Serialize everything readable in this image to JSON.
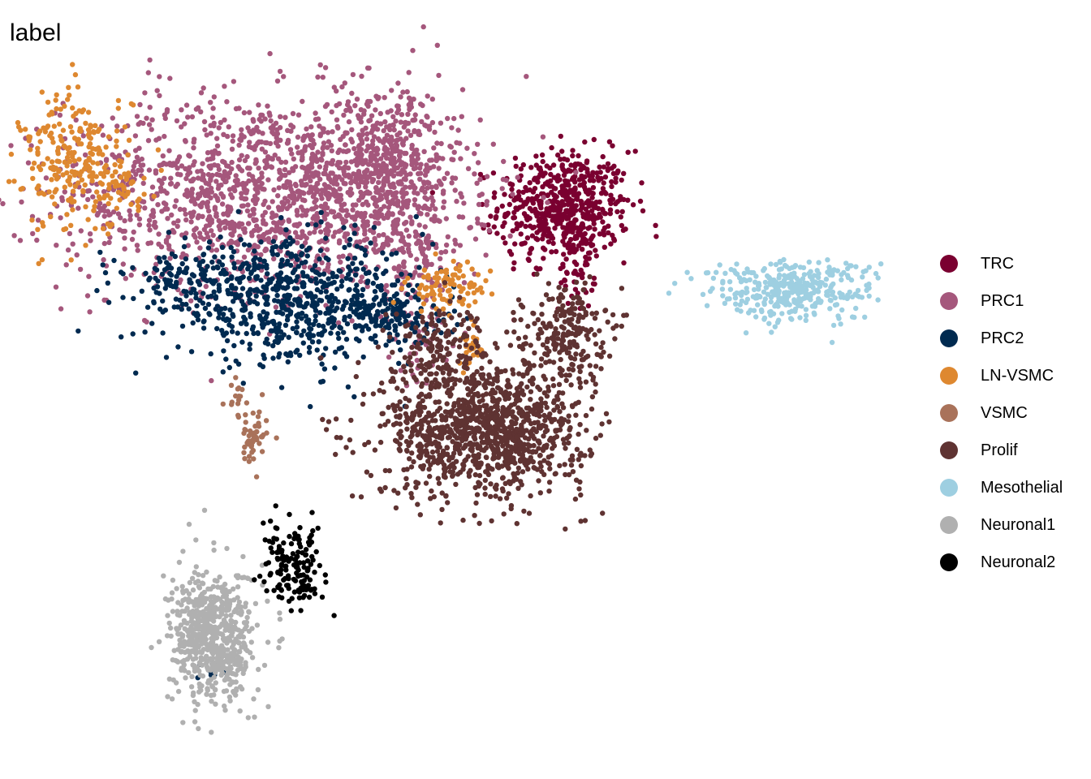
{
  "chart_data": {
    "type": "scatter",
    "title": "label",
    "xlabel": "",
    "ylabel": "",
    "grid": false,
    "legend_position": "right",
    "series": [
      {
        "name": "TRC",
        "color": "#7A0030",
        "clusters": [
          {
            "center": [
              8.2,
              7.6
            ],
            "spread": [
              1.1,
              0.9
            ],
            "n": 520
          },
          {
            "center": [
              8.6,
              5.7
            ],
            "spread": [
              0.3,
              0.8
            ],
            "n": 60
          },
          {
            "center": [
              7.1,
              6.7
            ],
            "spread": [
              0.9,
              0.6
            ],
            "n": 20
          }
        ]
      },
      {
        "name": "PRC1",
        "color": "#A5577C",
        "clusters": [
          {
            "center": [
              -2.0,
              8.0
            ],
            "spread": [
              3.3,
              1.6
            ],
            "n": 1400
          },
          {
            "center": [
              2.2,
              8.8
            ],
            "spread": [
              1.3,
              1.4
            ],
            "n": 500
          },
          {
            "center": [
              3.2,
              5.9
            ],
            "spread": [
              0.9,
              0.8
            ],
            "n": 90
          },
          {
            "center": [
              3.4,
              3.3
            ],
            "spread": [
              0.5,
              0.8
            ],
            "n": 40
          }
        ]
      },
      {
        "name": "PRC2",
        "color": "#002A50",
        "clusters": [
          {
            "center": [
              -0.8,
              4.4
            ],
            "spread": [
              2.2,
              1.0
            ],
            "n": 650
          },
          {
            "center": [
              -4.2,
              5.2
            ],
            "spread": [
              1.2,
              0.5
            ],
            "n": 130
          },
          {
            "center": [
              2.4,
              4.0
            ],
            "spread": [
              0.8,
              0.5
            ],
            "n": 90
          },
          {
            "center": [
              -3.5,
              -7.8
            ],
            "spread": [
              0.3,
              0.2
            ],
            "n": 8
          }
        ]
      },
      {
        "name": "LN-VSMC",
        "color": "#DE8830",
        "clusters": [
          {
            "center": [
              -8.2,
              9.0
            ],
            "spread": [
              0.9,
              1.2
            ],
            "n": 240
          },
          {
            "center": [
              -6.8,
              8.2
            ],
            "spread": [
              0.8,
              0.4
            ],
            "n": 40
          },
          {
            "center": [
              4.3,
              4.9
            ],
            "spread": [
              0.7,
              0.4
            ],
            "n": 90
          },
          {
            "center": [
              5.0,
              2.9
            ],
            "spread": [
              0.2,
              0.4
            ],
            "n": 25
          }
        ]
      },
      {
        "name": "VSMC",
        "color": "#A9725A",
        "clusters": [
          {
            "center": [
              -2.7,
              1.2
            ],
            "spread": [
              0.25,
              0.3
            ],
            "n": 20
          },
          {
            "center": [
              -2.3,
              -0.2
            ],
            "spread": [
              0.25,
              0.4
            ],
            "n": 45
          }
        ]
      },
      {
        "name": "Prolif",
        "color": "#5F3332",
        "clusters": [
          {
            "center": [
              5.5,
              0.2
            ],
            "spread": [
              1.7,
              1.1
            ],
            "n": 1100
          },
          {
            "center": [
              8.2,
              3.4
            ],
            "spread": [
              0.7,
              0.8
            ],
            "n": 220
          },
          {
            "center": [
              4.0,
              3.0
            ],
            "spread": [
              0.9,
              0.7
            ],
            "n": 160
          }
        ]
      },
      {
        "name": "Mesothelial",
        "color": "#9ECFE1",
        "clusters": [
          {
            "center": [
              15.8,
              4.8
            ],
            "spread": [
              1.4,
              0.5
            ],
            "n": 360
          }
        ]
      },
      {
        "name": "Neuronal1",
        "color": "#B0B0B0",
        "clusters": [
          {
            "center": [
              -3.6,
              -6.6
            ],
            "spread": [
              0.7,
              1.1
            ],
            "n": 650
          }
        ]
      },
      {
        "name": "Neuronal2",
        "color": "#000000",
        "clusters": [
          {
            "center": [
              -0.9,
              -4.2
            ],
            "spread": [
              0.5,
              0.6
            ],
            "n": 130
          },
          {
            "center": [
              -1.1,
              -5.2
            ],
            "spread": [
              0.6,
              0.2
            ],
            "n": 20
          }
        ]
      }
    ],
    "xlim": [
      -10.5,
      19.5
    ],
    "ylim": [
      -10.5,
      12.5
    ]
  }
}
